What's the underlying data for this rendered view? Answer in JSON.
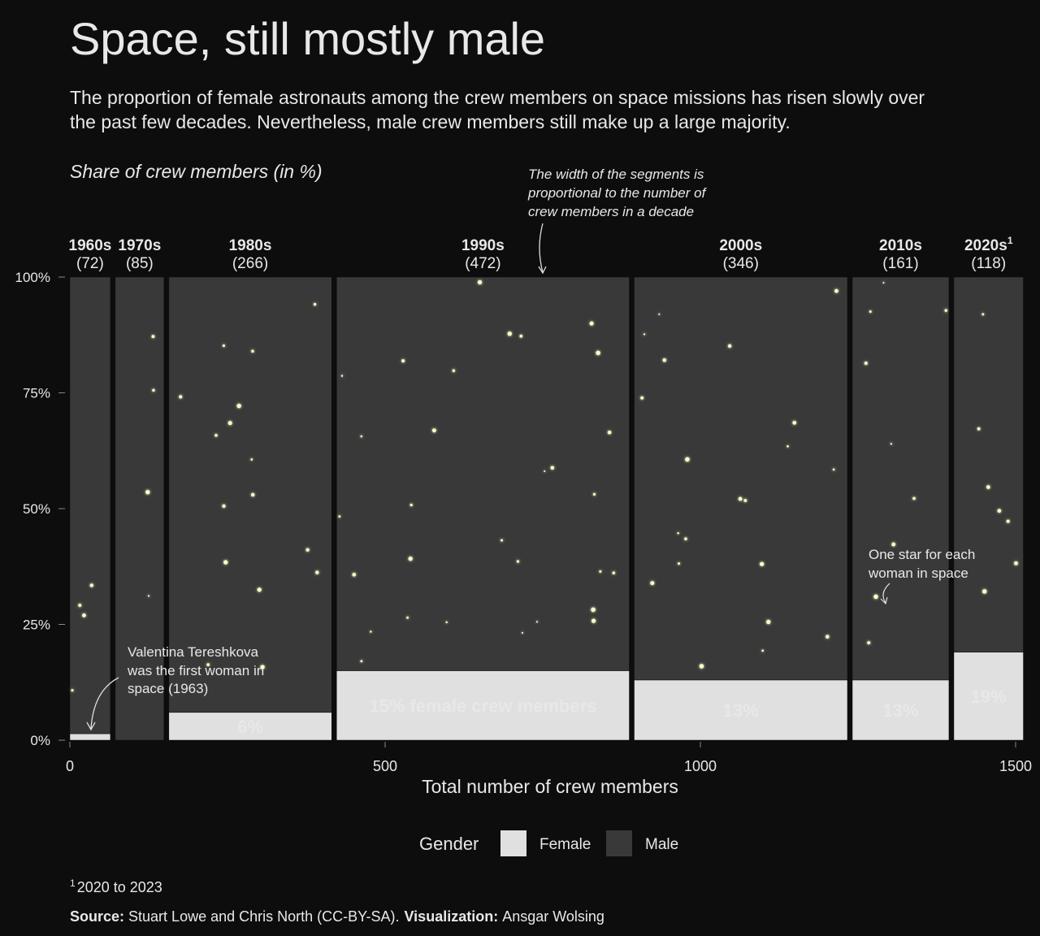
{
  "chart_data": {
    "type": "mekko",
    "title": "Space, still mostly male",
    "subtitle": [
      "The proportion of female astronauts among the crew members on space missions has risen slowly over",
      "the past few decades. Nevertheless, male crew members still make up a large majority."
    ],
    "y_label": "Share of crew members (in %)",
    "x_label": "Total number of crew members",
    "categories": [
      "1960s",
      "1970s",
      "1980s",
      "1990s",
      "2000s",
      "2010s",
      "2020s"
    ],
    "category_footnotes": [
      null,
      null,
      null,
      null,
      null,
      null,
      "1"
    ],
    "widths": [
      72,
      85,
      266,
      472,
      346,
      161,
      118
    ],
    "width_labels": [
      "(72)",
      "(85)",
      "(266)",
      "(472)",
      "(346)",
      "(161)",
      "(118)"
    ],
    "series": [
      {
        "name": "Female",
        "color": "#e0e0e0",
        "values": [
          1.4,
          0,
          6,
          15,
          13,
          13,
          19
        ],
        "value_labels": [
          null,
          null,
          "6%",
          "15% female crew members",
          "13%",
          "13%",
          "19%"
        ]
      },
      {
        "name": "Male",
        "color": "#393939",
        "values": [
          98.6,
          100,
          94,
          85,
          87,
          87,
          81
        ]
      }
    ],
    "xlim": [
      0,
      1520
    ],
    "xticks": [
      0,
      500,
      1000,
      1500
    ],
    "ylim": [
      0,
      100
    ],
    "yticks": [
      {
        "value": 0,
        "label": "0%"
      },
      {
        "value": 25,
        "label": "25%"
      },
      {
        "value": 50,
        "label": "50%"
      },
      {
        "value": 75,
        "label": "75%"
      },
      {
        "value": 100,
        "label": "100%"
      }
    ],
    "legend_title": "Gender",
    "annotations": [
      [
        "The width of the segments is",
        "proportional to the number of",
        "crew members in a decade"
      ],
      [
        "Valentina Tereshkova",
        "was the first woman in",
        "space (1963)"
      ],
      [
        "One star for each",
        "woman in space"
      ]
    ],
    "footnote_marker": "1",
    "footnote": "2020 to 2023",
    "source_label": "Source:",
    "source": "Stuart Lowe and Chris North (CC-BY-SA).",
    "visualization_label": "Visualization:",
    "visualization": "Ansgar Wolsing"
  }
}
